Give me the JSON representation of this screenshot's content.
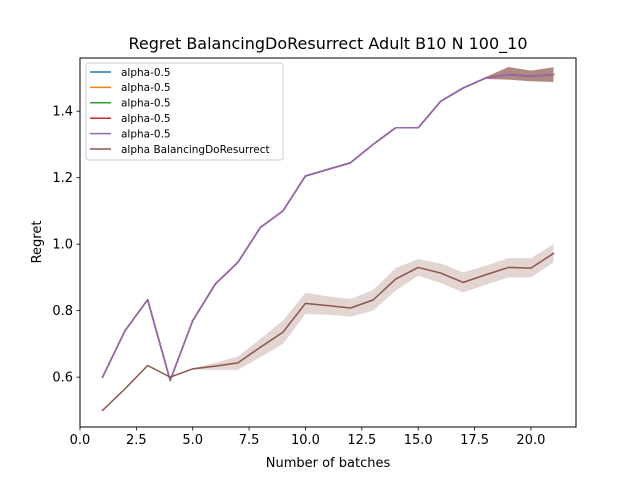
{
  "chart_data": {
    "type": "line",
    "title": "Regret BalancingDoResurrect Adult B10 N 100_10",
    "xlabel": "Number of batches",
    "ylabel": "Regret",
    "xlim": [
      0.0,
      22.0
    ],
    "ylim": [
      0.45,
      1.56
    ],
    "x_ticks": [
      0.0,
      2.5,
      5.0,
      7.5,
      10.0,
      12.5,
      15.0,
      17.5,
      20.0
    ],
    "x_tick_labels": [
      "0.0",
      "2.5",
      "5.0",
      "7.5",
      "10.0",
      "12.5",
      "15.0",
      "17.5",
      "20.0"
    ],
    "y_ticks": [
      0.6,
      0.8,
      1.0,
      1.2,
      1.4
    ],
    "y_tick_labels": [
      "0.6",
      "0.8",
      "1.0",
      "1.2",
      "1.4"
    ],
    "grid": false,
    "legend_position": "top-left",
    "x": [
      1,
      2,
      3,
      4,
      5,
      6,
      7,
      8,
      9,
      10,
      11,
      12,
      13,
      14,
      15,
      16,
      17,
      18,
      19,
      20,
      21
    ],
    "series": [
      {
        "name": "alpha-0.5",
        "color": "#1f77b4",
        "values": [
          0.6,
          0.74,
          0.833,
          0.59,
          0.77,
          0.88,
          0.945,
          1.05,
          1.1,
          1.205,
          1.225,
          1.245,
          1.3,
          1.35,
          1.35,
          1.43,
          1.47,
          1.5,
          1.51,
          1.505,
          1.51
        ]
      },
      {
        "name": "alpha-0.5",
        "color": "#ff7f0e",
        "values": [
          0.6,
          0.74,
          0.833,
          0.59,
          0.77,
          0.88,
          0.945,
          1.05,
          1.1,
          1.205,
          1.225,
          1.245,
          1.3,
          1.35,
          1.35,
          1.43,
          1.47,
          1.5,
          1.51,
          1.505,
          1.51
        ]
      },
      {
        "name": "alpha-0.5",
        "color": "#2ca02c",
        "values": [
          0.6,
          0.74,
          0.833,
          0.59,
          0.77,
          0.88,
          0.945,
          1.05,
          1.1,
          1.205,
          1.225,
          1.245,
          1.3,
          1.35,
          1.35,
          1.43,
          1.47,
          1.5,
          1.51,
          1.505,
          1.51
        ]
      },
      {
        "name": "alpha-0.5",
        "color": "#d62728",
        "values": [
          0.6,
          0.74,
          0.833,
          0.59,
          0.77,
          0.88,
          0.945,
          1.05,
          1.1,
          1.205,
          1.225,
          1.245,
          1.3,
          1.35,
          1.35,
          1.43,
          1.47,
          1.5,
          1.51,
          1.505,
          1.51
        ]
      },
      {
        "name": "alpha-0.5",
        "color": "#9467bd",
        "values": [
          0.6,
          0.74,
          0.833,
          0.59,
          0.77,
          0.88,
          0.945,
          1.05,
          1.1,
          1.205,
          1.225,
          1.245,
          1.3,
          1.35,
          1.35,
          1.43,
          1.47,
          1.5,
          1.51,
          1.505,
          1.51
        ]
      },
      {
        "name": "alpha BalancingDoResurrect",
        "color": "#8c564b",
        "values": [
          0.5,
          0.565,
          0.635,
          0.6,
          0.625,
          0.633,
          0.643,
          0.69,
          0.735,
          0.822,
          0.815,
          0.808,
          0.832,
          0.895,
          0.93,
          0.913,
          0.885,
          0.908,
          0.93,
          0.928,
          0.972
        ],
        "band_lower": [
          0.5,
          0.565,
          0.635,
          0.6,
          0.623,
          0.622,
          0.622,
          0.66,
          0.7,
          0.79,
          0.788,
          0.782,
          0.8,
          0.86,
          0.905,
          0.883,
          0.855,
          0.878,
          0.9,
          0.9,
          0.945
        ],
        "band_upper": [
          0.5,
          0.565,
          0.635,
          0.6,
          0.627,
          0.643,
          0.662,
          0.715,
          0.77,
          0.854,
          0.843,
          0.835,
          0.862,
          0.928,
          0.955,
          0.942,
          0.915,
          0.935,
          0.958,
          0.958,
          1.0
        ]
      }
    ],
    "purple_band": {
      "x": [
        17,
        18,
        19,
        20,
        21
      ],
      "lower": [
        1.47,
        1.497,
        1.495,
        1.49,
        1.488
      ],
      "upper": [
        1.47,
        1.503,
        1.533,
        1.522,
        1.532
      ],
      "color": "#8c564b"
    }
  }
}
